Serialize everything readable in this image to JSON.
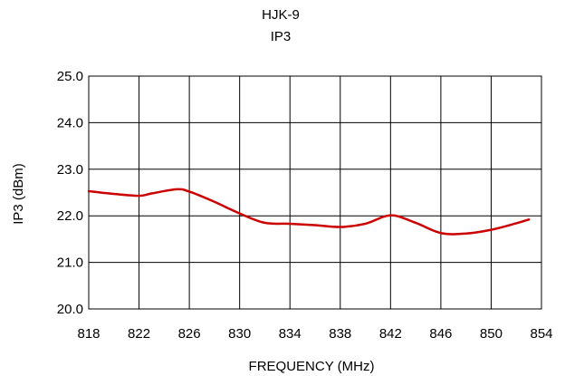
{
  "chart_data": {
    "type": "line",
    "title": "HJK-9",
    "subtitle": "IP3",
    "xlabel": "FREQUENCY (MHz)",
    "ylabel": "IP3 (dBm)",
    "xlim": [
      818,
      854
    ],
    "ylim": [
      20.0,
      25.0
    ],
    "xticks": [
      818,
      822,
      826,
      830,
      834,
      838,
      842,
      846,
      850,
      854
    ],
    "yticks": [
      20.0,
      21.0,
      22.0,
      23.0,
      24.0,
      25.0
    ],
    "xtick_labels": [
      "818",
      "822",
      "826",
      "830",
      "834",
      "838",
      "842",
      "846",
      "850",
      "854"
    ],
    "ytick_labels": [
      "20.0",
      "21.0",
      "22.0",
      "23.0",
      "24.0",
      "25.0"
    ],
    "grid": true,
    "legend": "none",
    "series": [
      {
        "color": "#cc0000",
        "x": [
          818,
          820,
          822,
          823,
          825,
          826,
          828,
          830,
          832,
          834,
          836,
          838,
          840,
          842,
          844,
          846,
          848,
          850,
          852,
          853
        ],
        "y": [
          22.53,
          22.47,
          22.43,
          22.48,
          22.57,
          22.52,
          22.3,
          22.05,
          21.85,
          21.83,
          21.8,
          21.76,
          21.83,
          22.01,
          21.85,
          21.63,
          21.62,
          21.7,
          21.84,
          21.92
        ]
      }
    ]
  }
}
